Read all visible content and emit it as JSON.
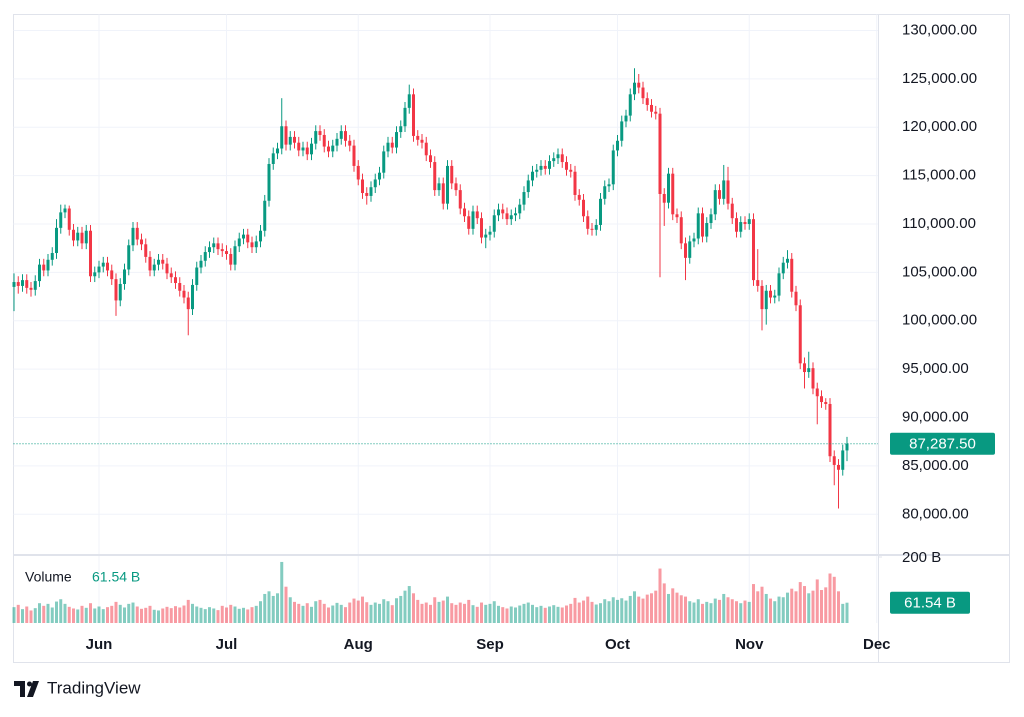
{
  "chart_data": {
    "type": "candlestick",
    "categories": [
      null,
      null,
      null,
      null,
      null,
      null,
      null,
      null,
      null,
      null,
      null,
      null,
      null,
      null,
      null,
      null,
      null,
      null,
      null,
      null,
      "Jun",
      null,
      null,
      null,
      null,
      null,
      null,
      null,
      null,
      null,
      null,
      null,
      null,
      null,
      null,
      null,
      null,
      null,
      null,
      null,
      null,
      null,
      null,
      null,
      null,
      null,
      null,
      null,
      null,
      null,
      "Jul",
      null,
      null,
      null,
      null,
      null,
      null,
      null,
      null,
      null,
      null,
      null,
      null,
      null,
      null,
      null,
      null,
      null,
      null,
      null,
      null,
      null,
      null,
      null,
      null,
      null,
      null,
      null,
      null,
      null,
      null,
      "Aug",
      null,
      null,
      null,
      null,
      null,
      null,
      null,
      null,
      null,
      null,
      null,
      null,
      null,
      null,
      null,
      null,
      null,
      null,
      null,
      null,
      null,
      null,
      null,
      null,
      null,
      null,
      null,
      null,
      null,
      null,
      "Sep",
      null,
      null,
      null,
      null,
      null,
      null,
      null,
      null,
      null,
      null,
      null,
      null,
      null,
      null,
      null,
      null,
      null,
      null,
      null,
      null,
      null,
      null,
      null,
      null,
      null,
      null,
      null,
      null,
      null,
      "Oct",
      null,
      null,
      null,
      null,
      null,
      null,
      null,
      null,
      null,
      null,
      null,
      null,
      null,
      null,
      null,
      null,
      null,
      null,
      null,
      null,
      null,
      null,
      null,
      null,
      null,
      null,
      null,
      null,
      null,
      null,
      "Nov",
      null,
      null,
      null,
      null,
      null,
      null,
      null,
      null,
      null,
      null,
      null,
      null,
      null,
      null,
      null,
      null,
      null,
      null,
      null,
      null,
      null,
      null,
      null,
      null,
      null,
      null,
      null,
      null,
      null,
      "Dec"
    ],
    "open": [
      103500,
      104000,
      103600,
      104200,
      103400,
      103200,
      104100,
      105800,
      105200,
      106300,
      107000,
      109600,
      111200,
      111600,
      109400,
      108300,
      109100,
      108000,
      109300,
      104600,
      105000,
      105600,
      106000,
      105200,
      104300,
      102100,
      103800,
      105300,
      107800,
      109600,
      108400,
      107900,
      106600,
      105200,
      105800,
      106300,
      105900,
      104900,
      104500,
      103900,
      103100,
      102400,
      101200,
      103700,
      105500,
      106200,
      107100,
      107600,
      108000,
      107400,
      107200,
      106900,
      105800,
      107700,
      108500,
      108900,
      108100,
      107600,
      108200,
      109300,
      112400,
      116200,
      117300,
      117800,
      120100,
      118200,
      119000,
      118400,
      117600,
      117900,
      117200,
      118300,
      119600,
      119200,
      118000,
      117500,
      118100,
      118800,
      119600,
      118600,
      118100,
      116000,
      114600,
      113200,
      112900,
      113800,
      114600,
      115300,
      117500,
      118400,
      117900,
      119500,
      120100,
      122000,
      123400,
      119100,
      118700,
      118400,
      117100,
      116400,
      113500,
      114200,
      112100,
      116000,
      114200,
      113500,
      111600,
      110800,
      109500,
      111300,
      110600,
      108600,
      108900,
      109200,
      110900,
      111500,
      111100,
      110500,
      110900,
      111100,
      112000,
      113300,
      114500,
      115400,
      115600,
      116000,
      115700,
      116500,
      116800,
      117200,
      116400,
      115600,
      115400,
      113000,
      112500,
      110800,
      109500,
      109400,
      109900,
      112600,
      113900,
      114100,
      117600,
      118600,
      120600,
      121200,
      123400,
      124600,
      124100,
      123000,
      122300,
      121600,
      121400,
      113100,
      112200,
      115200,
      111000,
      110700,
      108000,
      106500,
      108200,
      108500,
      111100,
      108700,
      110100,
      111000,
      113500,
      112600,
      114500,
      112100,
      110600,
      109200,
      110200,
      110000,
      110500,
      104200,
      103600,
      101200,
      103100,
      102400,
      102600,
      104900,
      106000,
      106400,
      103000,
      101600,
      95600,
      94700,
      95100,
      93000,
      92200,
      91600,
      91400,
      86000,
      85100,
      84600,
      86600,
      null,
      null,
      null,
      null,
      null,
      null,
      null
    ],
    "high": [
      104900,
      104600,
      104800,
      104800,
      104000,
      104700,
      106400,
      106400,
      106900,
      107600,
      110500,
      112000,
      112000,
      111900,
      110000,
      109700,
      109700,
      109900,
      109900,
      105600,
      106200,
      106600,
      106600,
      105800,
      104900,
      104400,
      105900,
      108400,
      110200,
      110200,
      109000,
      108500,
      107200,
      106400,
      106900,
      106900,
      106500,
      105500,
      105100,
      104500,
      103700,
      103000,
      104300,
      106100,
      106800,
      107700,
      108200,
      108600,
      108600,
      108000,
      107800,
      107500,
      108300,
      109100,
      109500,
      109500,
      108700,
      108800,
      109900,
      113000,
      116800,
      117900,
      118400,
      123000,
      120700,
      119600,
      119600,
      119000,
      118500,
      118500,
      118900,
      120200,
      120200,
      119800,
      118600,
      118700,
      119400,
      120200,
      120200,
      119200,
      118700,
      116600,
      115200,
      113800,
      114400,
      115200,
      115900,
      118100,
      119000,
      119000,
      120100,
      120700,
      122600,
      124400,
      124000,
      119700,
      119300,
      119000,
      117700,
      117000,
      114800,
      114800,
      116600,
      116600,
      114800,
      114100,
      112200,
      111400,
      111900,
      111900,
      111200,
      109500,
      109800,
      111500,
      112100,
      112100,
      111700,
      111500,
      111700,
      112600,
      113900,
      115100,
      116000,
      116200,
      116600,
      116600,
      117100,
      117400,
      117800,
      117800,
      117000,
      116200,
      116000,
      113600,
      113100,
      111400,
      110100,
      110500,
      113200,
      114500,
      114700,
      118200,
      119200,
      121200,
      121800,
      124000,
      126100,
      125500,
      124700,
      123600,
      122900,
      122200,
      122000,
      113700,
      115800,
      115800,
      111600,
      111300,
      108600,
      108800,
      109100,
      111700,
      111700,
      110700,
      111600,
      114100,
      114100,
      116100,
      115900,
      112700,
      111200,
      110800,
      110800,
      111100,
      111100,
      107400,
      104200,
      103700,
      103700,
      103200,
      105500,
      106600,
      107300,
      107000,
      103600,
      102200,
      96200,
      96800,
      95700,
      93600,
      92800,
      92000,
      92000,
      86600,
      85700,
      87200,
      88000,
      null,
      null,
      null,
      null,
      null,
      null,
      null
    ],
    "low": [
      101000,
      102800,
      103000,
      102800,
      102500,
      102600,
      103500,
      104600,
      104600,
      105700,
      106400,
      109000,
      110600,
      108800,
      107700,
      107700,
      107400,
      107400,
      104000,
      104000,
      104400,
      105000,
      104600,
      103700,
      100500,
      101500,
      103200,
      104700,
      107200,
      107800,
      107300,
      106000,
      104600,
      104600,
      105200,
      105300,
      104300,
      103900,
      103300,
      102500,
      101800,
      98500,
      100600,
      103100,
      104900,
      105600,
      106500,
      107000,
      106800,
      106600,
      106300,
      105200,
      105200,
      107100,
      107900,
      107500,
      107000,
      107000,
      107600,
      108700,
      111800,
      115600,
      116700,
      117200,
      117600,
      117600,
      117800,
      117000,
      117000,
      116600,
      116600,
      117700,
      118600,
      117400,
      116900,
      116900,
      117500,
      118200,
      118000,
      117500,
      115400,
      114000,
      112600,
      112000,
      112300,
      113200,
      114000,
      114700,
      116900,
      117300,
      117300,
      118900,
      119500,
      121400,
      118500,
      118100,
      117800,
      116500,
      115800,
      112900,
      112900,
      111500,
      111500,
      113600,
      112900,
      111000,
      110200,
      108900,
      108900,
      110000,
      108000,
      107500,
      108300,
      108600,
      110300,
      110500,
      109900,
      109900,
      110300,
      110500,
      111400,
      112700,
      113900,
      114800,
      115000,
      115100,
      115100,
      115900,
      116200,
      115800,
      115000,
      114800,
      112400,
      111900,
      110200,
      108900,
      108800,
      108800,
      109300,
      112000,
      113300,
      113500,
      117000,
      118000,
      120000,
      120600,
      122800,
      123500,
      122400,
      121700,
      121000,
      120800,
      104500,
      109800,
      111600,
      110400,
      110100,
      107400,
      104200,
      105900,
      107600,
      107900,
      108100,
      108100,
      109500,
      110400,
      112000,
      112000,
      111500,
      110000,
      108600,
      108600,
      109400,
      109400,
      103600,
      103000,
      99000,
      99600,
      101800,
      101800,
      102000,
      104300,
      105400,
      102400,
      101000,
      95000,
      93000,
      94100,
      92400,
      89300,
      91000,
      90800,
      85400,
      83000,
      80600,
      84000,
      85500,
      null,
      null,
      null,
      null,
      null,
      null,
      null
    ],
    "close": [
      104000,
      103600,
      104200,
      103400,
      103200,
      104100,
      105800,
      105200,
      106300,
      107000,
      109600,
      111200,
      111600,
      109400,
      108300,
      109100,
      108000,
      109300,
      104600,
      105000,
      105600,
      106000,
      105200,
      104300,
      102100,
      103800,
      105300,
      107800,
      109600,
      108400,
      107900,
      106600,
      105200,
      105800,
      106300,
      105900,
      104900,
      104500,
      103900,
      103100,
      102400,
      101200,
      103700,
      105500,
      106200,
      107100,
      107600,
      108000,
      107400,
      107200,
      106900,
      105800,
      107700,
      108500,
      108900,
      108100,
      107600,
      108200,
      109300,
      112400,
      116200,
      117300,
      117800,
      120100,
      118200,
      119000,
      118400,
      117600,
      117900,
      117200,
      118300,
      119600,
      119200,
      118000,
      117500,
      118100,
      118800,
      119600,
      118600,
      118100,
      116000,
      114600,
      113200,
      112900,
      113800,
      114600,
      115300,
      117500,
      118400,
      117900,
      119500,
      120100,
      122000,
      123400,
      119100,
      118700,
      118400,
      117100,
      116400,
      113500,
      114200,
      112100,
      116000,
      114200,
      113500,
      111600,
      110800,
      109500,
      111300,
      110600,
      108600,
      108900,
      109200,
      110900,
      111500,
      111100,
      110500,
      110900,
      111100,
      112000,
      113300,
      114500,
      115400,
      115600,
      116000,
      115700,
      116500,
      116800,
      117200,
      116400,
      115600,
      115400,
      113000,
      112500,
      110800,
      109500,
      109400,
      109900,
      112600,
      113900,
      114100,
      117600,
      118600,
      120600,
      121200,
      123400,
      124600,
      124100,
      123000,
      122300,
      121600,
      121400,
      113100,
      112200,
      115200,
      111000,
      110700,
      108000,
      106500,
      108200,
      108500,
      111100,
      108700,
      110100,
      111000,
      113500,
      112600,
      114500,
      112100,
      110600,
      109200,
      110200,
      110000,
      110500,
      104200,
      103600,
      101200,
      103100,
      102400,
      102600,
      104900,
      106000,
      106400,
      103000,
      101600,
      95600,
      94700,
      95100,
      93000,
      92200,
      91600,
      91400,
      86000,
      85100,
      84600,
      86600,
      87287.5,
      null,
      null,
      null,
      null,
      null,
      null,
      null
    ],
    "close_last_label": "87,287.50",
    "up_color": "#089981",
    "down_color": "#f23645",
    "ylim": [
      76000,
      131700
    ],
    "yticks": [
      {
        "value": 80000,
        "label": "80,000.00"
      },
      {
        "value": 85000,
        "label": "85,000.00"
      },
      {
        "value": 90000,
        "label": "90,000.00"
      },
      {
        "value": 95000,
        "label": "95,000.00"
      },
      {
        "value": 100000,
        "label": "100,000.00"
      },
      {
        "value": 105000,
        "label": "105,000.00"
      },
      {
        "value": 110000,
        "label": "110,000.00"
      },
      {
        "value": 115000,
        "label": "115,000.00"
      },
      {
        "value": 120000,
        "label": "120,000.00"
      },
      {
        "value": 125000,
        "label": "125,000.00"
      },
      {
        "value": 130000,
        "label": "130,000.00"
      }
    ],
    "grid": true,
    "volume": {
      "name": "Volume",
      "values": [
        48,
        55,
        42,
        50,
        38,
        45,
        60,
        52,
        58,
        47,
        65,
        72,
        58,
        49,
        44,
        41,
        52,
        46,
        60,
        44,
        50,
        42,
        48,
        52,
        64,
        55,
        47,
        58,
        62,
        50,
        43,
        46,
        52,
        40,
        38,
        44,
        49,
        45,
        51,
        47,
        53,
        70,
        58,
        50,
        46,
        42,
        48,
        44,
        39,
        52,
        47,
        55,
        50,
        43,
        46,
        41,
        48,
        52,
        66,
        88,
        96,
        82,
        90,
        185,
        110,
        78,
        64,
        58,
        52,
        60,
        49,
        66,
        70,
        58,
        47,
        53,
        61,
        55,
        48,
        62,
        74,
        68,
        80,
        63,
        55,
        62,
        58,
        72,
        66,
        54,
        75,
        82,
        98,
        112,
        90,
        70,
        58,
        62,
        55,
        78,
        64,
        68,
        80,
        60,
        55,
        62,
        58,
        70,
        54,
        49,
        62,
        55,
        58,
        66,
        52,
        48,
        44,
        50,
        47,
        53,
        58,
        62,
        55,
        48,
        52,
        46,
        50,
        54,
        49,
        47,
        53,
        58,
        76,
        62,
        68,
        80,
        64,
        56,
        60,
        72,
        66,
        78,
        70,
        75,
        68,
        82,
        96,
        80,
        74,
        86,
        90,
        98,
        165,
        120,
        88,
        105,
        92,
        84,
        80,
        66,
        62,
        72,
        58,
        64,
        60,
        74,
        70,
        88,
        78,
        72,
        66,
        60,
        68,
        64,
        118,
        96,
        110,
        88,
        74,
        66,
        80,
        78,
        92,
        104,
        96,
        124,
        112,
        90,
        98,
        132,
        100,
        108,
        150,
        140,
        96,
        58,
        61.54,
        null,
        null,
        null,
        null,
        null,
        null,
        null
      ],
      "last_label": "61.54 B",
      "up_color": "rgba(8,153,129,0.5)",
      "down_color": "rgba(242,54,69,0.5)",
      "ylim": [
        0,
        200
      ],
      "yticks": [
        {
          "value": 200,
          "label": "200 B"
        }
      ]
    }
  },
  "footer": {
    "brand": "TradingView"
  }
}
